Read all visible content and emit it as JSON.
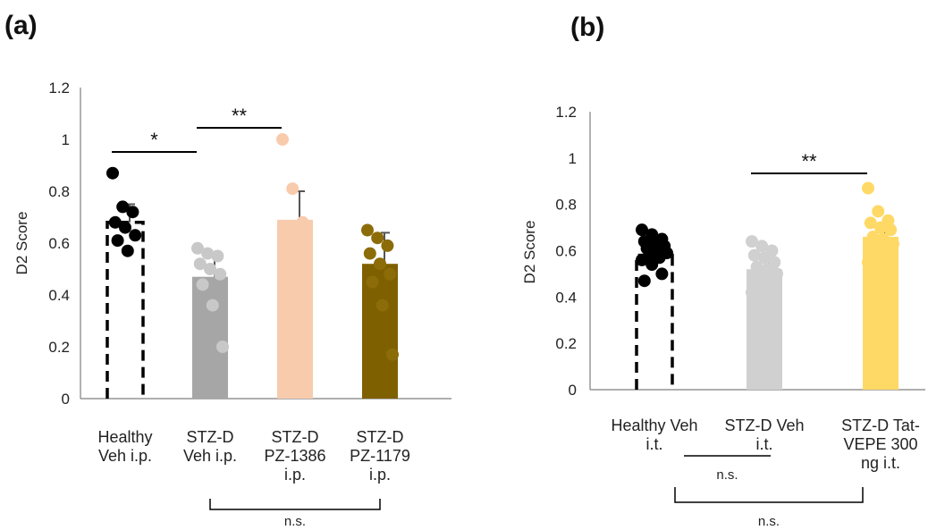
{
  "chart_data": [
    {
      "type": "bar",
      "panel_label": "(a)",
      "ylabel": "D2 Score",
      "ylim": [
        0,
        1.2
      ],
      "yticks": [
        "0",
        "0.2",
        "0.4",
        "0.6",
        "0.8",
        "1",
        "1.2"
      ],
      "categories": [
        {
          "lines": [
            "Healthy",
            "Veh i.p."
          ]
        },
        {
          "lines": [
            "STZ-D",
            "Veh i.p."
          ]
        },
        {
          "lines": [
            "STZ-D",
            "PZ-1386",
            "i.p."
          ]
        },
        {
          "lines": [
            "STZ-D",
            "PZ-1179",
            "i.p."
          ]
        }
      ],
      "values": [
        0.68,
        0.47,
        0.69,
        0.52
      ],
      "errors": [
        0.07,
        0.09,
        0.11,
        0.12
      ],
      "colors": [
        "#ffffff",
        "#a6a6a6",
        "#f8cbad",
        "#7f6000"
      ],
      "point_colors": [
        "#000000",
        "#c8c8c8",
        "#f8cbad",
        "#8c6c08"
      ],
      "points": [
        [
          0.87,
          0.74,
          0.72,
          0.68,
          0.66,
          0.63,
          0.61,
          0.57
        ],
        [
          0.58,
          0.56,
          0.55,
          0.52,
          0.5,
          0.48,
          0.44,
          0.36,
          0.2
        ],
        [
          1.0,
          0.81,
          0.68,
          0.66,
          0.62,
          0.59,
          0.58
        ],
        [
          0.65,
          0.62,
          0.59,
          0.56,
          0.52,
          0.48,
          0.45,
          0.36,
          0.17
        ]
      ],
      "significance": [
        {
          "label": "*",
          "from": 0,
          "to": 1
        },
        {
          "label": "**",
          "from": 1,
          "to": 2
        }
      ],
      "bottom_bracket": {
        "label": "n.s.",
        "from": 1,
        "to": 3
      }
    },
    {
      "type": "bar",
      "panel_label": "(b)",
      "ylabel": "D2 Score",
      "ylim": [
        0,
        1.2
      ],
      "yticks": [
        "0",
        "0.2",
        "0.4",
        "0.6",
        "0.8",
        "1",
        "1.2"
      ],
      "categories": [
        {
          "lines": [
            "Healthy Veh",
            "i.t."
          ]
        },
        {
          "lines": [
            "STZ-D Veh",
            "i.t."
          ]
        },
        {
          "lines": [
            "STZ-D Tat-",
            "VEPE 300",
            "ng i.t."
          ]
        }
      ],
      "values": [
        0.58,
        0.52,
        0.66
      ],
      "errors": [
        0.02,
        0.04,
        0.04
      ],
      "colors": [
        "#ffffff",
        "#d0d0d0",
        "#ffd966"
      ],
      "point_colors": [
        "#000000",
        "#d0d0d0",
        "#ffd966"
      ],
      "points": [
        [
          0.69,
          0.67,
          0.65,
          0.64,
          0.63,
          0.62,
          0.61,
          0.6,
          0.59,
          0.58,
          0.57,
          0.56,
          0.54,
          0.5,
          0.47
        ],
        [
          0.64,
          0.62,
          0.6,
          0.58,
          0.57,
          0.55,
          0.53,
          0.52,
          0.5,
          0.48,
          0.45,
          0.42,
          0.4,
          0.38
        ],
        [
          0.87,
          0.77,
          0.73,
          0.72,
          0.7,
          0.69,
          0.66,
          0.65,
          0.63,
          0.6,
          0.57,
          0.55,
          0.52,
          0.45,
          0.42,
          0.36
        ]
      ],
      "significance": [
        {
          "label": "**",
          "from": 1,
          "to": 2
        }
      ],
      "bottom_brackets": [
        {
          "label": "n.s.",
          "from": 0,
          "to": 1,
          "style": "line"
        },
        {
          "label": "n.s.",
          "from": 0,
          "to": 2,
          "style": "bracket"
        }
      ]
    }
  ]
}
